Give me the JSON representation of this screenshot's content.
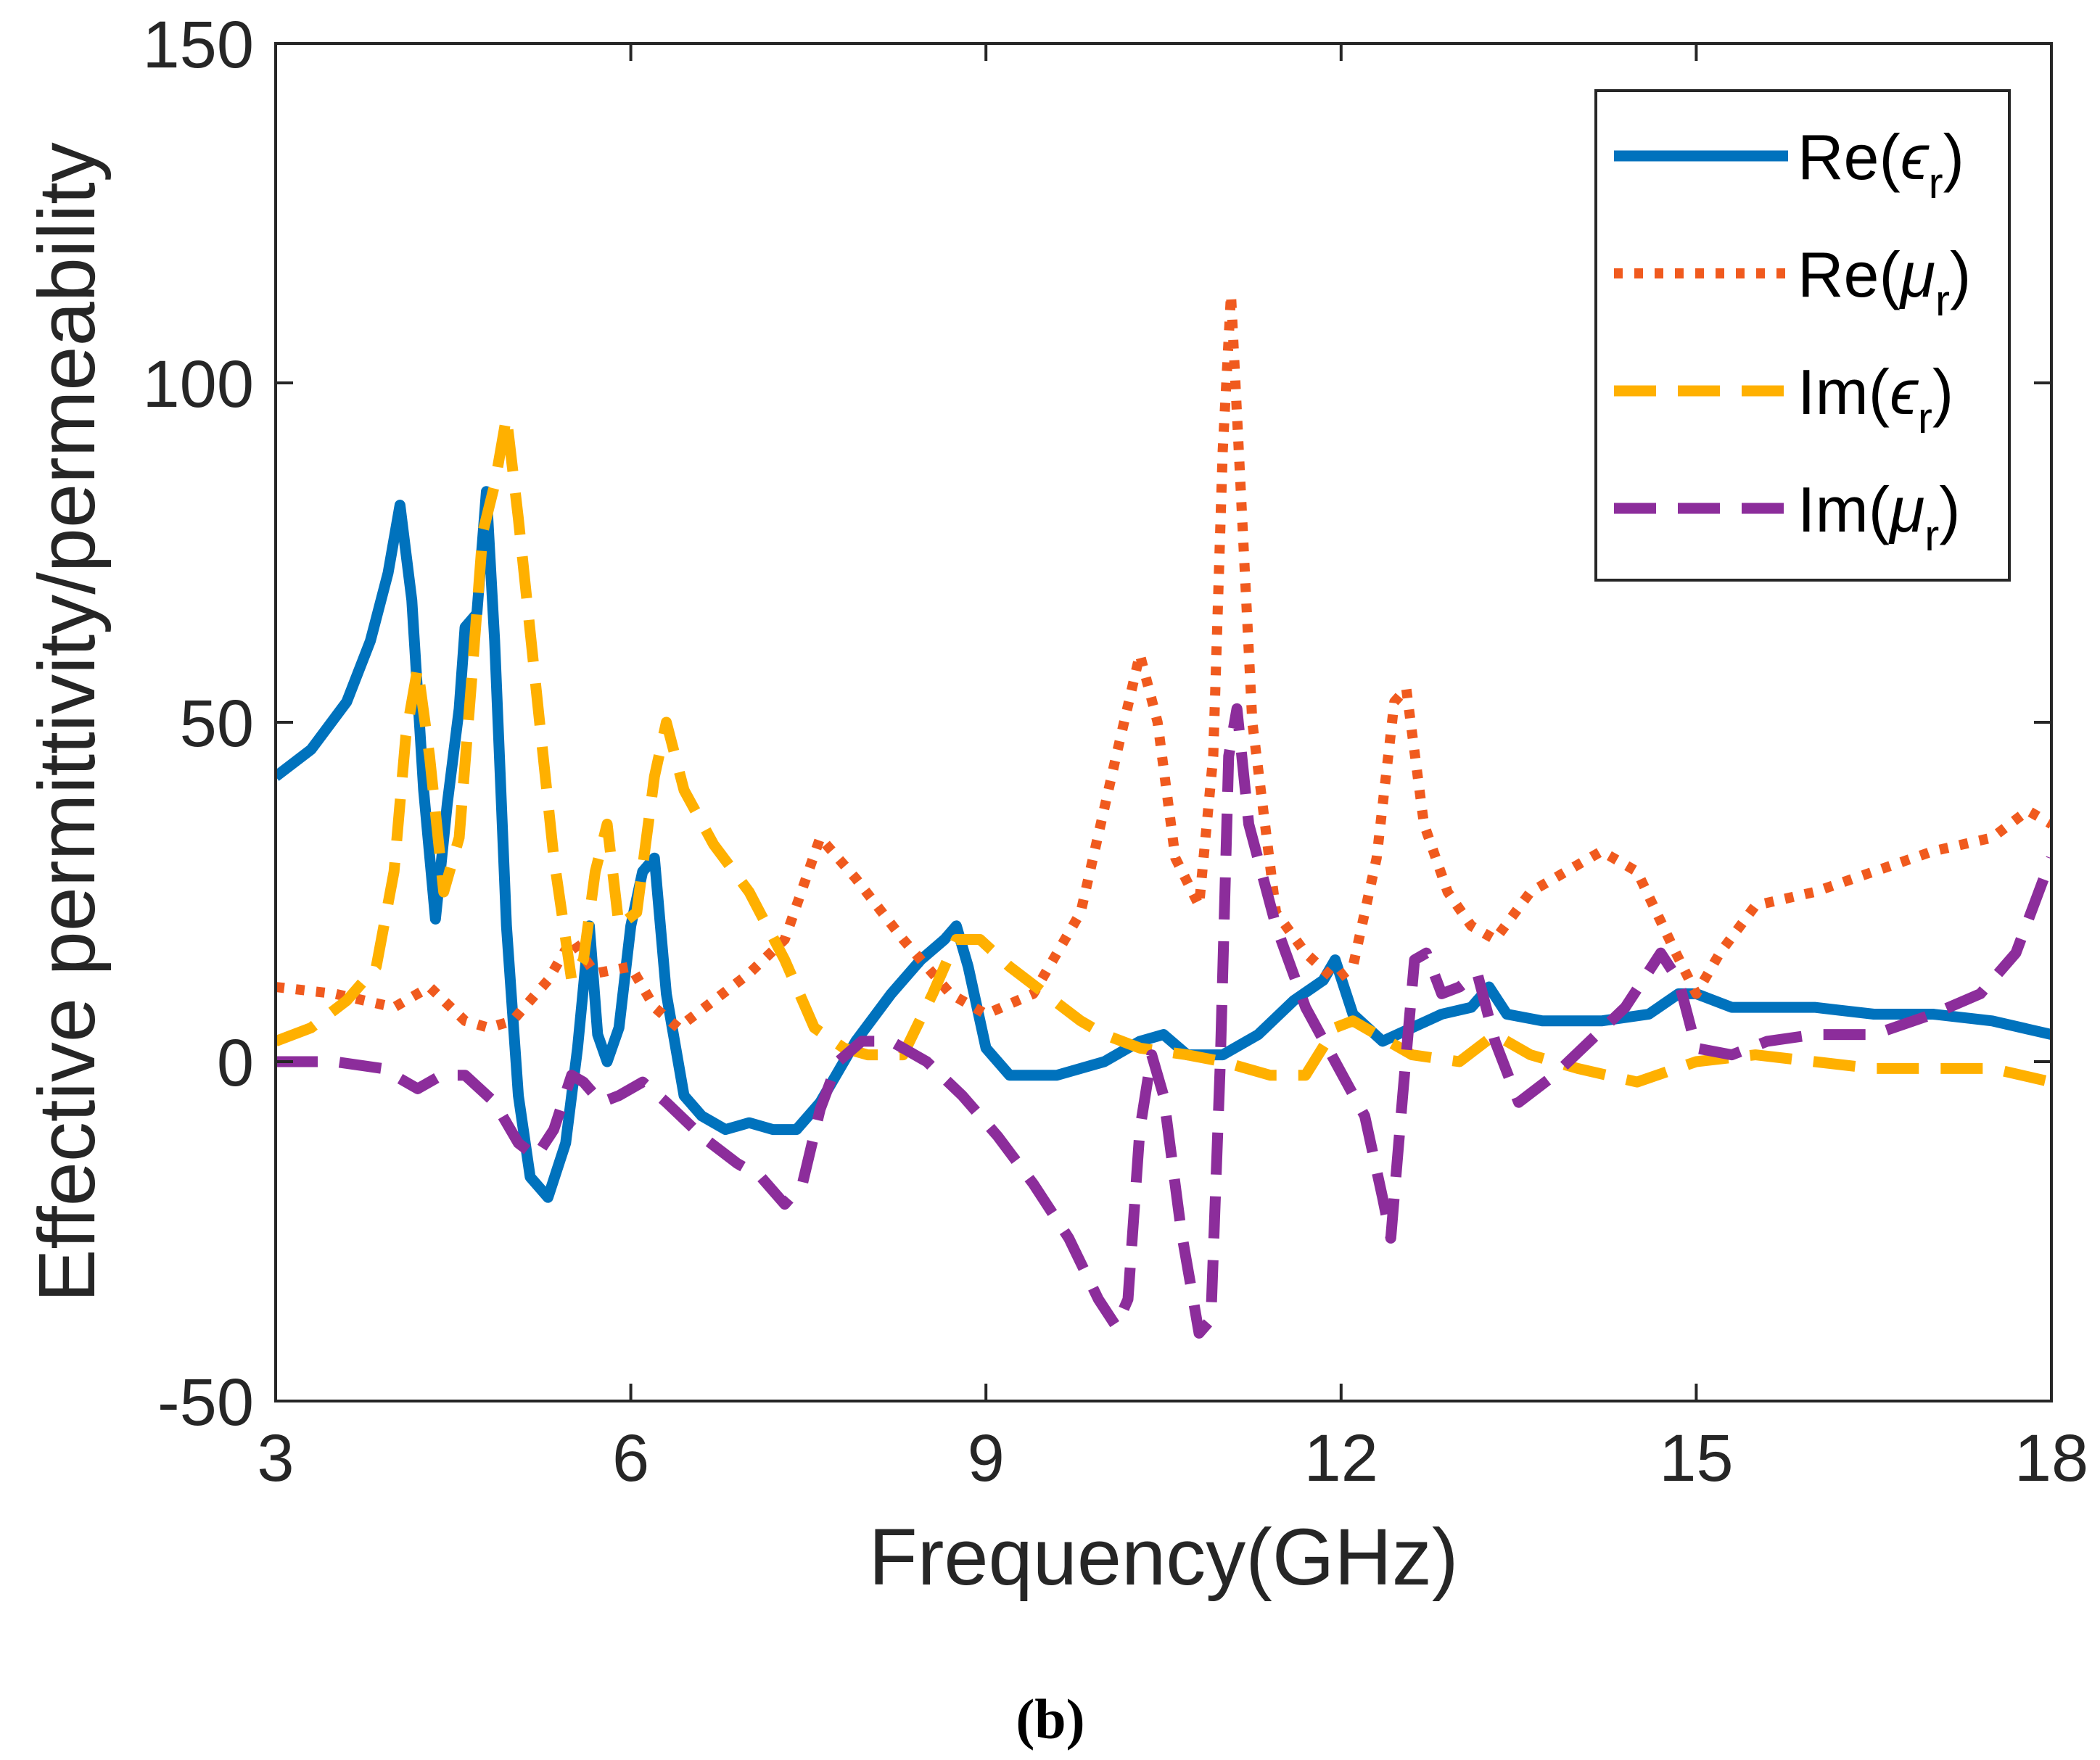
{
  "chart_data": {
    "type": "line",
    "caption": "(b)",
    "xlabel": "Frequency(GHz)",
    "ylabel": "Effective permittivity/permeability",
    "xlim": [
      3,
      18
    ],
    "ylim": [
      -50,
      150
    ],
    "xticks": [
      3,
      6,
      9,
      12,
      15,
      18
    ],
    "yticks": [
      -50,
      0,
      50,
      100,
      150
    ],
    "xtick_labels": [
      "3",
      "6",
      "9",
      "12",
      "15",
      "18"
    ],
    "ytick_labels": [
      "-50",
      "0",
      "50",
      "100",
      "150"
    ],
    "legend_position": "top-right",
    "grid": false,
    "series": [
      {
        "name": "Re(εr)",
        "label_base": "Re(",
        "label_symbol": "ϵ",
        "label_sub": "r",
        "label_close": ")",
        "color": "#0072BD",
        "style": "solid",
        "points": [
          [
            3,
            42
          ],
          [
            3.3,
            46
          ],
          [
            3.6,
            53
          ],
          [
            3.8,
            62
          ],
          [
            3.95,
            72
          ],
          [
            4.05,
            82
          ],
          [
            4.15,
            68
          ],
          [
            4.25,
            40
          ],
          [
            4.35,
            21
          ],
          [
            4.45,
            38
          ],
          [
            4.55,
            52
          ],
          [
            4.6,
            64
          ],
          [
            4.7,
            66
          ],
          [
            4.78,
            84
          ],
          [
            4.85,
            62
          ],
          [
            4.95,
            20
          ],
          [
            5.05,
            -5
          ],
          [
            5.15,
            -17
          ],
          [
            5.3,
            -20
          ],
          [
            5.45,
            -12
          ],
          [
            5.55,
            2
          ],
          [
            5.65,
            20
          ],
          [
            5.72,
            4
          ],
          [
            5.8,
            0
          ],
          [
            5.9,
            5
          ],
          [
            6.0,
            20
          ],
          [
            6.1,
            28
          ],
          [
            6.2,
            30
          ],
          [
            6.3,
            10
          ],
          [
            6.45,
            -5
          ],
          [
            6.6,
            -8
          ],
          [
            6.8,
            -10
          ],
          [
            7.0,
            -9
          ],
          [
            7.2,
            -10
          ],
          [
            7.4,
            -10
          ],
          [
            7.6,
            -6
          ],
          [
            7.9,
            3
          ],
          [
            8.2,
            10
          ],
          [
            8.45,
            15
          ],
          [
            8.65,
            18
          ],
          [
            8.75,
            20
          ],
          [
            8.85,
            14
          ],
          [
            9.0,
            2
          ],
          [
            9.2,
            -2
          ],
          [
            9.6,
            -2
          ],
          [
            10.0,
            0
          ],
          [
            10.3,
            3
          ],
          [
            10.5,
            4
          ],
          [
            10.7,
            1
          ],
          [
            11.0,
            1
          ],
          [
            11.3,
            4
          ],
          [
            11.6,
            9
          ],
          [
            11.85,
            12
          ],
          [
            11.95,
            15
          ],
          [
            12.1,
            7
          ],
          [
            12.35,
            3
          ],
          [
            12.6,
            5
          ],
          [
            12.85,
            7
          ],
          [
            13.1,
            8
          ],
          [
            13.25,
            11
          ],
          [
            13.4,
            7
          ],
          [
            13.7,
            6
          ],
          [
            14.2,
            6
          ],
          [
            14.6,
            7
          ],
          [
            14.85,
            10
          ],
          [
            15.0,
            10
          ],
          [
            15.3,
            8
          ],
          [
            16.0,
            8
          ],
          [
            16.5,
            7
          ],
          [
            17.0,
            7
          ],
          [
            17.5,
            6
          ],
          [
            18.0,
            4
          ]
        ]
      },
      {
        "name": "Re(μr)",
        "label_base": "Re(",
        "label_symbol": "μ",
        "label_sub": "r",
        "label_close": ")",
        "color": "#F05A1E",
        "style": "dotted",
        "points": [
          [
            3,
            11
          ],
          [
            3.5,
            10
          ],
          [
            4.0,
            8
          ],
          [
            4.3,
            11
          ],
          [
            4.6,
            6
          ],
          [
            4.8,
            5
          ],
          [
            5.0,
            6
          ],
          [
            5.3,
            12
          ],
          [
            5.5,
            18
          ],
          [
            5.7,
            13
          ],
          [
            6.0,
            14
          ],
          [
            6.2,
            8
          ],
          [
            6.4,
            5
          ],
          [
            6.7,
            9
          ],
          [
            7.0,
            13
          ],
          [
            7.3,
            18
          ],
          [
            7.6,
            33
          ],
          [
            7.9,
            27
          ],
          [
            8.3,
            18
          ],
          [
            8.7,
            10
          ],
          [
            9.0,
            7
          ],
          [
            9.4,
            10
          ],
          [
            9.8,
            22
          ],
          [
            10.1,
            45
          ],
          [
            10.3,
            60
          ],
          [
            10.45,
            50
          ],
          [
            10.6,
            30
          ],
          [
            10.8,
            23
          ],
          [
            10.92,
            45
          ],
          [
            11.0,
            90
          ],
          [
            11.07,
            113
          ],
          [
            11.15,
            85
          ],
          [
            11.25,
            50
          ],
          [
            11.45,
            22
          ],
          [
            11.7,
            16
          ],
          [
            11.95,
            12
          ],
          [
            12.1,
            14
          ],
          [
            12.3,
            30
          ],
          [
            12.45,
            53
          ],
          [
            12.55,
            55
          ],
          [
            12.7,
            35
          ],
          [
            12.9,
            25
          ],
          [
            13.1,
            20
          ],
          [
            13.3,
            18
          ],
          [
            13.6,
            25
          ],
          [
            13.9,
            28
          ],
          [
            14.2,
            31
          ],
          [
            14.5,
            28
          ],
          [
            14.8,
            17
          ],
          [
            15.0,
            10
          ],
          [
            15.2,
            16
          ],
          [
            15.5,
            23
          ],
          [
            16.0,
            25
          ],
          [
            16.5,
            28
          ],
          [
            17.0,
            31
          ],
          [
            17.5,
            33
          ],
          [
            17.8,
            37
          ],
          [
            18.0,
            35
          ]
        ]
      },
      {
        "name": "Im(εr)",
        "label_base": "Im(",
        "label_symbol": "ϵ",
        "label_sub": "r",
        "label_close": ")",
        "color": "#FFB000",
        "style": "dashed",
        "points": [
          [
            3,
            3
          ],
          [
            3.3,
            5
          ],
          [
            3.6,
            9
          ],
          [
            3.85,
            14
          ],
          [
            4.0,
            28
          ],
          [
            4.1,
            48
          ],
          [
            4.2,
            58
          ],
          [
            4.3,
            45
          ],
          [
            4.42,
            25
          ],
          [
            4.55,
            33
          ],
          [
            4.65,
            55
          ],
          [
            4.75,
            78
          ],
          [
            4.85,
            85
          ],
          [
            4.95,
            95
          ],
          [
            5.05,
            80
          ],
          [
            5.2,
            55
          ],
          [
            5.35,
            30
          ],
          [
            5.5,
            12
          ],
          [
            5.6,
            15
          ],
          [
            5.7,
            28
          ],
          [
            5.8,
            35
          ],
          [
            5.9,
            20
          ],
          [
            6.05,
            22
          ],
          [
            6.2,
            42
          ],
          [
            6.3,
            50
          ],
          [
            6.45,
            40
          ],
          [
            6.7,
            32
          ],
          [
            7.0,
            25
          ],
          [
            7.3,
            15
          ],
          [
            7.55,
            5
          ],
          [
            7.8,
            2
          ],
          [
            8.0,
            1
          ],
          [
            8.3,
            1
          ],
          [
            8.55,
            10
          ],
          [
            8.75,
            18
          ],
          [
            8.95,
            18
          ],
          [
            9.2,
            14
          ],
          [
            9.5,
            10
          ],
          [
            9.8,
            6
          ],
          [
            10.0,
            4
          ],
          [
            10.3,
            2
          ],
          [
            10.7,
            1
          ],
          [
            11.0,
            0
          ],
          [
            11.4,
            -2
          ],
          [
            11.7,
            -2
          ],
          [
            11.95,
            5
          ],
          [
            12.1,
            6
          ],
          [
            12.3,
            4
          ],
          [
            12.6,
            1
          ],
          [
            13.0,
            0
          ],
          [
            13.3,
            4
          ],
          [
            13.6,
            1
          ],
          [
            14.0,
            -1
          ],
          [
            14.5,
            -3
          ],
          [
            15.0,
            0
          ],
          [
            15.5,
            1
          ],
          [
            16.0,
            0
          ],
          [
            16.5,
            -1
          ],
          [
            17.0,
            -1
          ],
          [
            17.5,
            -1
          ],
          [
            18.0,
            -3
          ]
        ]
      },
      {
        "name": "Im(μr)",
        "label_base": "Im(",
        "label_symbol": "μ",
        "label_sub": "r",
        "label_close": ")",
        "color": "#8C2D9B",
        "style": "dashed",
        "points": [
          [
            3,
            0
          ],
          [
            3.5,
            0
          ],
          [
            3.9,
            -1
          ],
          [
            4.2,
            -4
          ],
          [
            4.4,
            -2
          ],
          [
            4.6,
            -2
          ],
          [
            4.85,
            -6
          ],
          [
            5.05,
            -12
          ],
          [
            5.2,
            -14
          ],
          [
            5.35,
            -10
          ],
          [
            5.5,
            -2
          ],
          [
            5.6,
            -3
          ],
          [
            5.75,
            -6
          ],
          [
            5.9,
            -5
          ],
          [
            6.1,
            -3
          ],
          [
            6.3,
            -6
          ],
          [
            6.6,
            -11
          ],
          [
            6.9,
            -15
          ],
          [
            7.1,
            -17
          ],
          [
            7.3,
            -21
          ],
          [
            7.45,
            -18
          ],
          [
            7.6,
            -7
          ],
          [
            7.75,
            0
          ],
          [
            7.95,
            3
          ],
          [
            8.2,
            3
          ],
          [
            8.5,
            0
          ],
          [
            8.8,
            -5
          ],
          [
            9.1,
            -11
          ],
          [
            9.4,
            -18
          ],
          [
            9.7,
            -26
          ],
          [
            9.95,
            -35
          ],
          [
            10.1,
            -39
          ],
          [
            10.2,
            -35
          ],
          [
            10.3,
            -10
          ],
          [
            10.4,
            1
          ],
          [
            10.5,
            -5
          ],
          [
            10.65,
            -25
          ],
          [
            10.8,
            -40
          ],
          [
            10.9,
            -38
          ],
          [
            10.98,
            0
          ],
          [
            11.05,
            45
          ],
          [
            11.12,
            52
          ],
          [
            11.22,
            35
          ],
          [
            11.45,
            20
          ],
          [
            11.7,
            8
          ],
          [
            11.95,
            0
          ],
          [
            12.2,
            -8
          ],
          [
            12.35,
            -20
          ],
          [
            12.42,
            -26
          ],
          [
            12.52,
            -5
          ],
          [
            12.62,
            15
          ],
          [
            12.72,
            16
          ],
          [
            12.85,
            10
          ],
          [
            13.0,
            11
          ],
          [
            13.15,
            13
          ],
          [
            13.3,
            3
          ],
          [
            13.5,
            -6
          ],
          [
            13.8,
            -2
          ],
          [
            14.1,
            3
          ],
          [
            14.4,
            8
          ],
          [
            14.7,
            16
          ],
          [
            14.85,
            12
          ],
          [
            15.0,
            2
          ],
          [
            15.3,
            1
          ],
          [
            15.6,
            3
          ],
          [
            16.0,
            4
          ],
          [
            16.5,
            4
          ],
          [
            17.0,
            7
          ],
          [
            17.4,
            10
          ],
          [
            17.7,
            16
          ],
          [
            18.0,
            30
          ]
        ]
      }
    ]
  }
}
